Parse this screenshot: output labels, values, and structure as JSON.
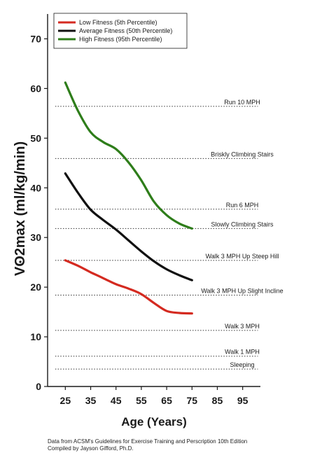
{
  "chart_data": {
    "type": "line",
    "xlabel": "Age (Years)",
    "ylabel": "VO2max (ml/kg/min)",
    "xticks": [
      25,
      35,
      45,
      55,
      65,
      75,
      85,
      95
    ],
    "yticks": [
      0,
      10,
      20,
      30,
      40,
      50,
      60,
      70
    ],
    "xlim": [
      18,
      102
    ],
    "ylim": [
      0,
      75
    ],
    "grid": false,
    "legend_position": "top-left",
    "series": [
      {
        "name": "Low Fitness (5th Percentile)",
        "color": "#d42a20",
        "x": [
          25,
          30,
          35,
          40,
          45,
          50,
          55,
          60,
          65,
          70,
          75
        ],
        "y": [
          25.4,
          24.3,
          23.0,
          21.8,
          20.6,
          19.7,
          18.6,
          16.8,
          15.2,
          14.8,
          14.7
        ]
      },
      {
        "name": "Average Fitness (50th Percentile)",
        "color": "#111111",
        "x": [
          25,
          30,
          35,
          40,
          45,
          50,
          55,
          60,
          65,
          70,
          75
        ],
        "y": [
          42.9,
          39.0,
          35.6,
          33.5,
          31.6,
          29.4,
          27.2,
          25.2,
          23.6,
          22.4,
          21.4
        ]
      },
      {
        "name": "High Fitness (95th Percentile)",
        "color": "#2e7d1a",
        "x": [
          25,
          30,
          35,
          40,
          45,
          50,
          55,
          60,
          65,
          70,
          75
        ],
        "y": [
          61.2,
          55.5,
          51.2,
          49.2,
          47.8,
          45.1,
          41.5,
          37.2,
          34.5,
          32.8,
          31.8
        ]
      }
    ],
    "reference_lines": [
      {
        "label": "Run 10 MPH",
        "y": 56.4
      },
      {
        "label": "Briskly Climbing Stairs",
        "y": 45.9
      },
      {
        "label": "Run 6 MPH",
        "y": 35.7
      },
      {
        "label": "Slowly Climbing Stairs",
        "y": 31.8
      },
      {
        "label": "Walk 3 MPH Up Steep Hill",
        "y": 25.4
      },
      {
        "label": "Walk 3 MPH Up Slight Incline",
        "y": 18.4
      },
      {
        "label": "Walk 3 MPH",
        "y": 11.3
      },
      {
        "label": "Walk 1 MPH",
        "y": 6.1
      },
      {
        "label": "Sleeping",
        "y": 3.5
      }
    ]
  },
  "footer": {
    "line1": "Data from ACSM's Guidelines for Exercise Training and Perscription 10th Edition",
    "line2": "Compiled by Jayson Gifford, Ph.D."
  }
}
